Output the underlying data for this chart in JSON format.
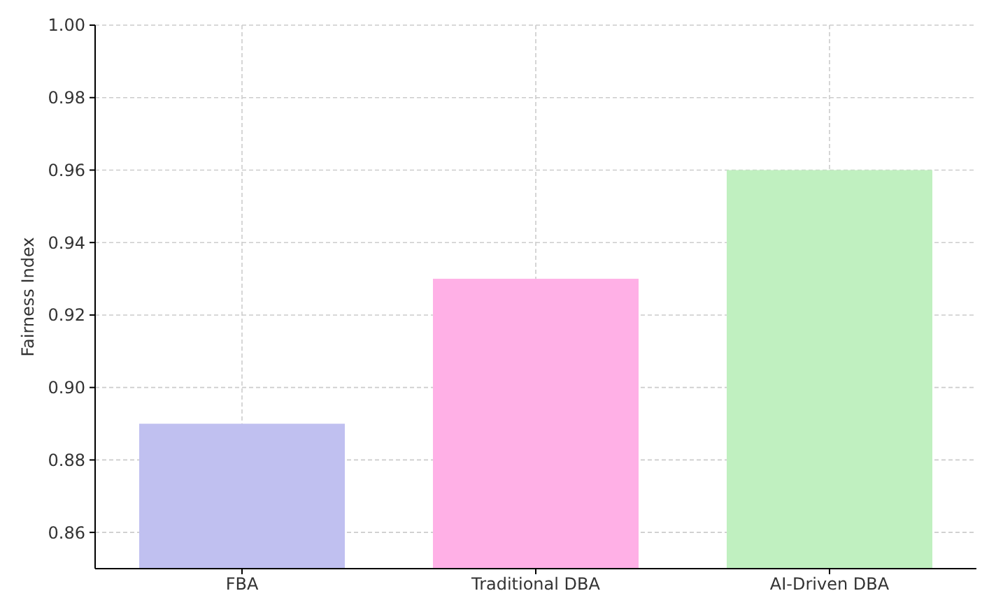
{
  "chart_data": {
    "type": "bar",
    "ylabel": "Fairness Index",
    "categories": [
      "FBA",
      "Traditional DBA",
      "AI-Driven DBA"
    ],
    "values": [
      0.89,
      0.93,
      0.96
    ],
    "colors": [
      "#c0c0f0",
      "#ffb0e6",
      "#c0f0c0"
    ],
    "ylim": [
      0.85,
      1.0
    ],
    "yticks": [
      {
        "value": 0.86,
        "label": "0.86"
      },
      {
        "value": 0.88,
        "label": "0.88"
      },
      {
        "value": 0.9,
        "label": "0.90"
      },
      {
        "value": 0.92,
        "label": "0.92"
      },
      {
        "value": 0.94,
        "label": "0.94"
      },
      {
        "value": 0.96,
        "label": "0.96"
      },
      {
        "value": 0.98,
        "label": "0.98"
      },
      {
        "value": 1.0,
        "label": "1.00"
      }
    ],
    "grid": true
  }
}
